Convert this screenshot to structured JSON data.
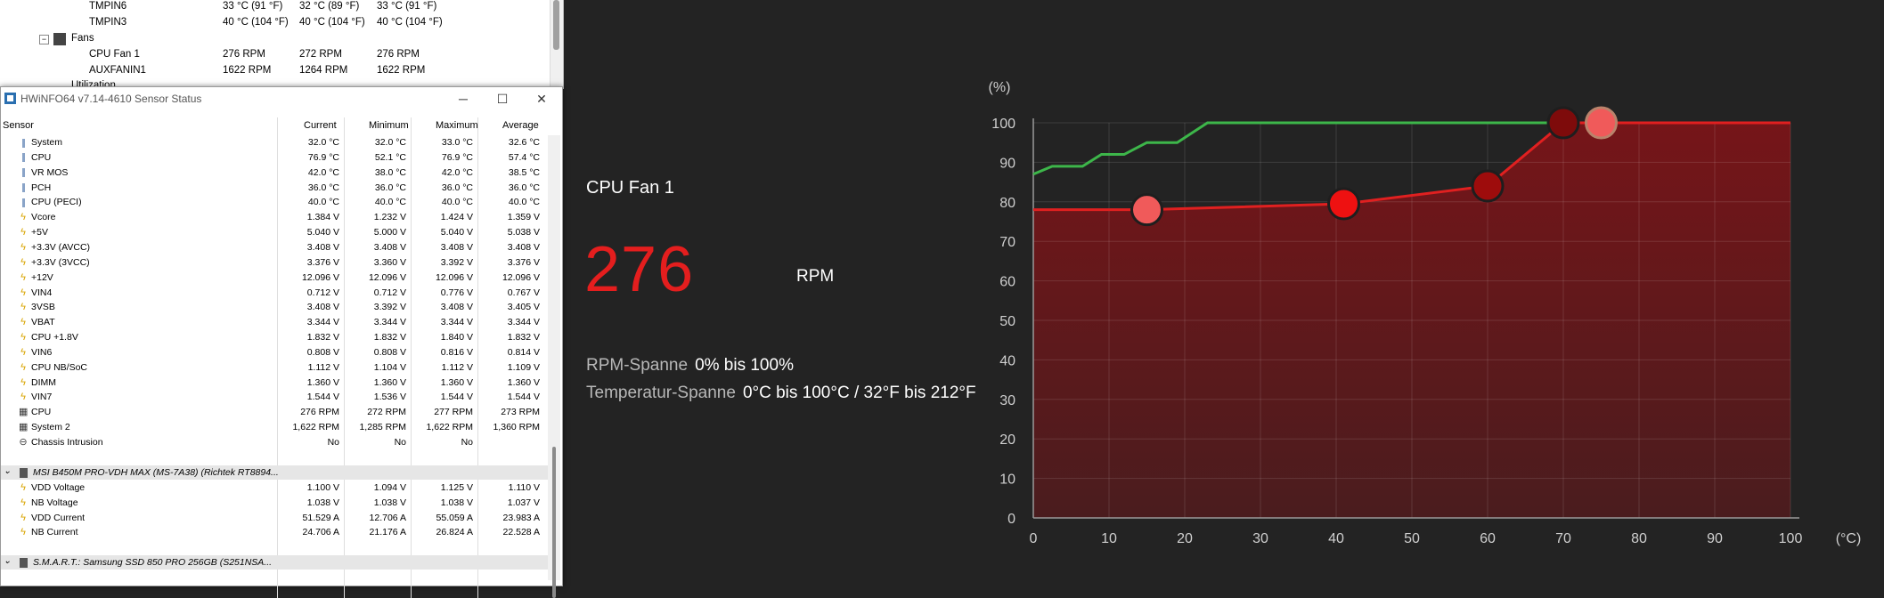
{
  "tree": {
    "rows": [
      {
        "name": "TMPIN6",
        "c1": "33 °C  (91 °F)",
        "c2": "32 °C  (89 °F)",
        "c3": "33 °C  (91 °F)"
      },
      {
        "name": "TMPIN3",
        "c1": "40 °C  (104 °F)",
        "c2": "40 °C  (104 °F)",
        "c3": "40 °C  (104 °F)"
      }
    ],
    "fans_label": "Fans",
    "fan_rows": [
      {
        "name": "CPU Fan 1",
        "c1": "276 RPM",
        "c2": "272 RPM",
        "c3": "276 RPM"
      },
      {
        "name": "AUXFANIN1",
        "c1": "1622 RPM",
        "c2": "1264 RPM",
        "c3": "1622 RPM"
      }
    ],
    "partial_label": "Utilization"
  },
  "hwinfo": {
    "title": "HWiNFO64 v7.14-4610 Sensor Status",
    "headers": {
      "sensor": "Sensor",
      "current": "Current",
      "minimum": "Minimum",
      "maximum": "Maximum",
      "average": "Average"
    },
    "rows": [
      {
        "icon": "thermometer",
        "name": "System",
        "cur": "32.0 °C",
        "min": "32.0 °C",
        "max": "33.0 °C",
        "avg": "32.6 °C"
      },
      {
        "icon": "thermometer",
        "name": "CPU",
        "cur": "76.9 °C",
        "min": "52.1 °C",
        "max": "76.9 °C",
        "avg": "57.4 °C"
      },
      {
        "icon": "thermometer",
        "name": "VR MOS",
        "cur": "42.0 °C",
        "min": "38.0 °C",
        "max": "42.0 °C",
        "avg": "38.5 °C"
      },
      {
        "icon": "thermometer",
        "name": "PCH",
        "cur": "36.0 °C",
        "min": "36.0 °C",
        "max": "36.0 °C",
        "avg": "36.0 °C"
      },
      {
        "icon": "thermometer",
        "name": "CPU (PECI)",
        "cur": "40.0 °C",
        "min": "40.0 °C",
        "max": "40.0 °C",
        "avg": "40.0 °C"
      },
      {
        "icon": "bolt",
        "name": "Vcore",
        "cur": "1.384 V",
        "min": "1.232 V",
        "max": "1.424 V",
        "avg": "1.359 V"
      },
      {
        "icon": "bolt",
        "name": "+5V",
        "cur": "5.040 V",
        "min": "5.000 V",
        "max": "5.040 V",
        "avg": "5.038 V"
      },
      {
        "icon": "bolt",
        "name": "+3.3V (AVCC)",
        "cur": "3.408 V",
        "min": "3.408 V",
        "max": "3.408 V",
        "avg": "3.408 V"
      },
      {
        "icon": "bolt",
        "name": "+3.3V (3VCC)",
        "cur": "3.376 V",
        "min": "3.360 V",
        "max": "3.392 V",
        "avg": "3.376 V"
      },
      {
        "icon": "bolt",
        "name": "+12V",
        "cur": "12.096 V",
        "min": "12.096 V",
        "max": "12.096 V",
        "avg": "12.096 V"
      },
      {
        "icon": "bolt",
        "name": "VIN4",
        "cur": "0.712 V",
        "min": "0.712 V",
        "max": "0.776 V",
        "avg": "0.767 V"
      },
      {
        "icon": "bolt",
        "name": "3VSB",
        "cur": "3.408 V",
        "min": "3.392 V",
        "max": "3.408 V",
        "avg": "3.405 V"
      },
      {
        "icon": "bolt",
        "name": "VBAT",
        "cur": "3.344 V",
        "min": "3.344 V",
        "max": "3.344 V",
        "avg": "3.344 V"
      },
      {
        "icon": "bolt",
        "name": "CPU +1.8V",
        "cur": "1.832 V",
        "min": "1.832 V",
        "max": "1.840 V",
        "avg": "1.832 V"
      },
      {
        "icon": "bolt",
        "name": "VIN6",
        "cur": "0.808 V",
        "min": "0.808 V",
        "max": "0.816 V",
        "avg": "0.814 V"
      },
      {
        "icon": "bolt",
        "name": "CPU NB/SoC",
        "cur": "1.112 V",
        "min": "1.104 V",
        "max": "1.112 V",
        "avg": "1.109 V"
      },
      {
        "icon": "bolt",
        "name": "DIMM",
        "cur": "1.360 V",
        "min": "1.360 V",
        "max": "1.360 V",
        "avg": "1.360 V"
      },
      {
        "icon": "bolt",
        "name": "VIN7",
        "cur": "1.544 V",
        "min": "1.536 V",
        "max": "1.544 V",
        "avg": "1.544 V"
      },
      {
        "icon": "fan",
        "name": "CPU",
        "cur": "276 RPM",
        "min": "272 RPM",
        "max": "277 RPM",
        "avg": "273 RPM"
      },
      {
        "icon": "fan",
        "name": "System 2",
        "cur": "1,622 RPM",
        "min": "1,285 RPM",
        "max": "1,622 RPM",
        "avg": "1,360 RPM"
      },
      {
        "icon": "intrusion",
        "name": "Chassis Intrusion",
        "cur": "No",
        "min": "No",
        "max": "No",
        "avg": ""
      }
    ],
    "group2": "MSI B450M PRO-VDH MAX (MS-7A38) (Richtek RT8894...",
    "rows2": [
      {
        "icon": "bolt",
        "name": "VDD Voltage",
        "cur": "1.100 V",
        "min": "1.094 V",
        "max": "1.125 V",
        "avg": "1.110 V"
      },
      {
        "icon": "bolt",
        "name": "NB Voltage",
        "cur": "1.038 V",
        "min": "1.038 V",
        "max": "1.038 V",
        "avg": "1.037 V"
      },
      {
        "icon": "bolt",
        "name": "VDD Current",
        "cur": "51.529 A",
        "min": "12.706 A",
        "max": "55.059 A",
        "avg": "23.983 A"
      },
      {
        "icon": "bolt",
        "name": "NB Current",
        "cur": "24.706 A",
        "min": "21.176 A",
        "max": "26.824 A",
        "avg": "22.528 A"
      }
    ],
    "group3": "S.M.A.R.T.: Samsung SSD 850 PRO 256GB (S251NSA..."
  },
  "fan_panel": {
    "name": "CPU Fan 1",
    "value": "276",
    "unit": "RPM",
    "rpm_span_label": "RPM-Spanne",
    "rpm_span_value": "0% bis 100%",
    "temp_span_label": "Temperatur-Spanne",
    "temp_span_value": "0°C bis 100°C / 32°F bis 212°F"
  },
  "chart_data": {
    "type": "line",
    "ylabel": "(%)",
    "xlabel": "(°C)",
    "xlim": [
      0,
      100
    ],
    "ylim": [
      0,
      100
    ],
    "x_ticks": [
      "0",
      "10",
      "20",
      "30",
      "40",
      "50",
      "60",
      "70",
      "80",
      "90",
      "100"
    ],
    "y_ticks": [
      "0",
      "10",
      "20",
      "30",
      "40",
      "50",
      "60",
      "70",
      "80",
      "90",
      "100"
    ],
    "grid": true,
    "colors": {
      "curve": "#e02020",
      "fill": "#7a1418",
      "speed": "#3db64a",
      "point_light": "#f05a5a",
      "point_red": "#ee1111",
      "point_dark": "#9e0c0c",
      "point_darker": "#7e0b0b",
      "point_ring": "#b9836b"
    },
    "series": [
      {
        "name": "",
        "role": "fan-curve",
        "points": [
          [
            0,
            78
          ],
          [
            15,
            78
          ],
          [
            41,
            79.5
          ],
          [
            60,
            84
          ],
          [
            70,
            100
          ],
          [
            75,
            100
          ],
          [
            100,
            100
          ]
        ]
      },
      {
        "name": "",
        "role": "fan-speed",
        "points": [
          [
            0,
            87
          ],
          [
            2.5,
            89
          ],
          [
            6.5,
            89
          ],
          [
            9,
            92
          ],
          [
            12,
            92
          ],
          [
            15,
            95
          ],
          [
            19,
            95
          ],
          [
            23,
            100
          ],
          [
            68,
            100
          ]
        ]
      }
    ],
    "control_points": [
      {
        "x": 15,
        "y": 78,
        "style": "light"
      },
      {
        "x": 41,
        "y": 79.5,
        "style": "red"
      },
      {
        "x": 60,
        "y": 84,
        "style": "dark"
      },
      {
        "x": 70,
        "y": 100,
        "style": "darker"
      },
      {
        "x": 75,
        "y": 100,
        "style": "ringed"
      }
    ]
  }
}
